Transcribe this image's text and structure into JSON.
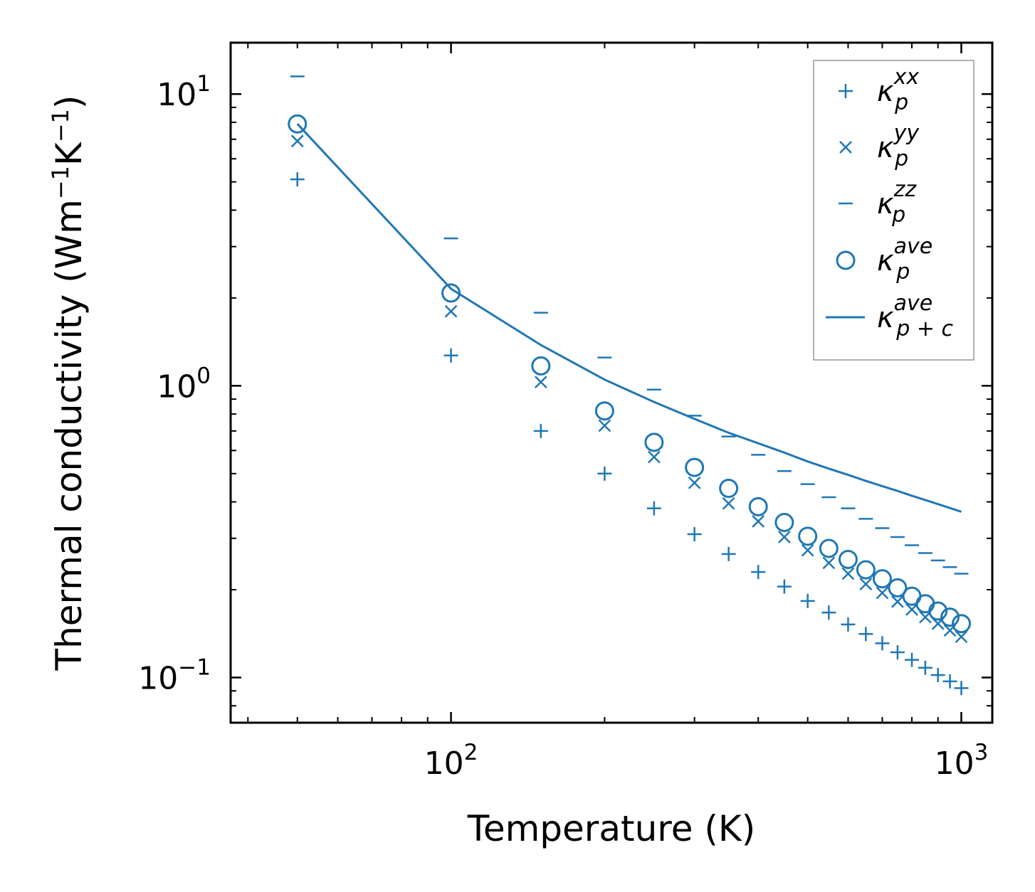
{
  "chart_data": {
    "type": "scatter",
    "xlabel": "Temperature (K)",
    "ylabel_parts": {
      "main": "Thermal conductivity (Wm",
      "e1": "−1",
      "k": "K",
      "e2": "−1",
      "close": ")"
    },
    "xscale": "log",
    "yscale": "log",
    "xlim": [
      37,
      1150
    ],
    "ylim": [
      0.07,
      15
    ],
    "xticks": [
      {
        "value": 100,
        "base": "10",
        "exp": "2"
      },
      {
        "value": 1000,
        "base": "10",
        "exp": "3"
      }
    ],
    "yticks": [
      {
        "value": 0.1,
        "base": "10",
        "exp": "−1"
      },
      {
        "value": 1,
        "base": "10",
        "exp": "0"
      },
      {
        "value": 10,
        "base": "10",
        "exp": "1"
      }
    ],
    "color": "#1f77b4",
    "legend_position": "top-right",
    "x": [
      50,
      100,
      150,
      200,
      250,
      300,
      350,
      400,
      450,
      500,
      550,
      600,
      650,
      700,
      750,
      800,
      850,
      900,
      950,
      1000
    ],
    "series": [
      {
        "name": "kxx",
        "label": {
          "sym": "κ",
          "sup": "xx",
          "sub": "p"
        },
        "marker": "plus",
        "values": [
          5.1,
          1.27,
          0.7,
          0.5,
          0.38,
          0.31,
          0.265,
          0.23,
          0.205,
          0.183,
          0.167,
          0.152,
          0.141,
          0.131,
          0.122,
          0.115,
          0.108,
          0.102,
          0.097,
          0.092
        ]
      },
      {
        "name": "kyy",
        "label": {
          "sym": "κ",
          "sup": "yy",
          "sub": "p"
        },
        "marker": "x",
        "values": [
          6.9,
          1.8,
          1.03,
          0.73,
          0.57,
          0.465,
          0.395,
          0.343,
          0.303,
          0.273,
          0.247,
          0.227,
          0.209,
          0.195,
          0.182,
          0.171,
          0.161,
          0.153,
          0.145,
          0.138
        ]
      },
      {
        "name": "kzz",
        "label": {
          "sym": "κ",
          "sup": "zz",
          "sub": "p"
        },
        "marker": "hline",
        "values": [
          11.5,
          3.2,
          1.78,
          1.25,
          0.97,
          0.79,
          0.67,
          0.58,
          0.51,
          0.46,
          0.415,
          0.38,
          0.35,
          0.325,
          0.303,
          0.284,
          0.267,
          0.252,
          0.239,
          0.227
        ]
      },
      {
        "name": "kave",
        "label": {
          "sym": "κ",
          "sup": "ave",
          "sub": "p"
        },
        "marker": "circle",
        "values": [
          7.9,
          2.08,
          1.17,
          0.82,
          0.64,
          0.525,
          0.445,
          0.385,
          0.34,
          0.305,
          0.277,
          0.254,
          0.234,
          0.218,
          0.203,
          0.19,
          0.179,
          0.169,
          0.161,
          0.153
        ]
      },
      {
        "name": "kpc",
        "label": {
          "sym": "κ",
          "sup": "ave",
          "sub": "p + c"
        },
        "marker": "line",
        "values": [
          7.9,
          2.15,
          1.38,
          1.05,
          0.88,
          0.77,
          0.69,
          0.635,
          0.59,
          0.55,
          0.52,
          0.495,
          0.472,
          0.453,
          0.436,
          0.42,
          0.406,
          0.393,
          0.381,
          0.37
        ]
      }
    ]
  }
}
